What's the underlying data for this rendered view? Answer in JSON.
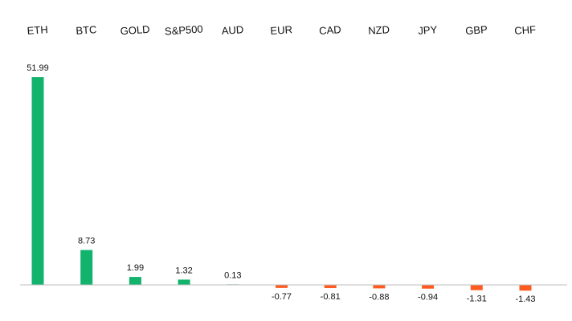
{
  "chart_data": {
    "type": "bar",
    "title": "",
    "xlabel": "",
    "ylabel": "",
    "categories": [
      "ETH",
      "BTC",
      "GOLD",
      "S&P500",
      "AUD",
      "EUR",
      "CAD",
      "NZD",
      "JPY",
      "GBP",
      "CHF"
    ],
    "values": [
      51.99,
      8.73,
      1.99,
      1.32,
      0.13,
      -0.77,
      -0.81,
      -0.88,
      -0.94,
      -1.31,
      -1.43
    ],
    "value_labels": [
      "51.99",
      "8.73",
      "1.99",
      "1.32",
      "0.13",
      "-0.77",
      "-0.81",
      "-0.88",
      "-0.94",
      "-1.31",
      "-1.43"
    ],
    "ylim": [
      -1.43,
      51.99
    ],
    "category_labels_position": "top",
    "grid": false,
    "legend": "none",
    "colors": {
      "positive": "#12b36d",
      "negative": "#ff5a1f",
      "axis": "#bfbfbf",
      "text": "#111111"
    }
  }
}
